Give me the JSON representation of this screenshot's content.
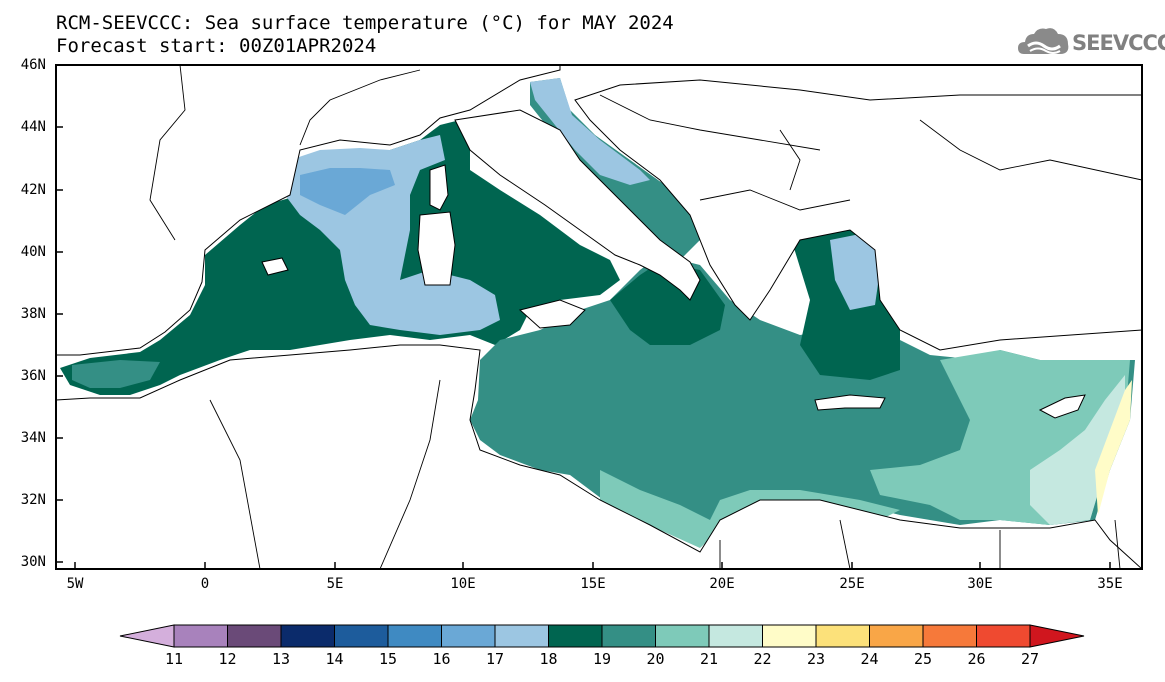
{
  "title_line1": "RCM-SEEVCCC: Sea surface temperature (°C) for MAY 2024",
  "title_line2": "Forecast start: 00Z01APR2024",
  "logo": {
    "text": "SEEVCCC",
    "icon": "cloud-logo-icon"
  },
  "lat_labels": [
    "46N",
    "44N",
    "42N",
    "40N",
    "38N",
    "36N",
    "34N",
    "32N",
    "30N"
  ],
  "lon_labels": [
    "5W",
    "0",
    "5E",
    "10E",
    "15E",
    "20E",
    "25E",
    "30E",
    "35E"
  ],
  "colorbar": {
    "labels": [
      "11",
      "12",
      "13",
      "14",
      "15",
      "16",
      "17",
      "18",
      "19",
      "20",
      "21",
      "22",
      "23",
      "24",
      "25",
      "26",
      "27"
    ],
    "colors": [
      "#d4afdc",
      "#a882bc",
      "#6a4a78",
      "#0b2b6b",
      "#1d5c9c",
      "#3f8ac2",
      "#6aa8d6",
      "#9cc6e2",
      "#006550",
      "#348f85",
      "#7ecab9",
      "#c5e8e0",
      "#fffcc8",
      "#fce17a",
      "#f9a647",
      "#f6793a",
      "#ef4a30",
      "#d0161e"
    ]
  }
}
